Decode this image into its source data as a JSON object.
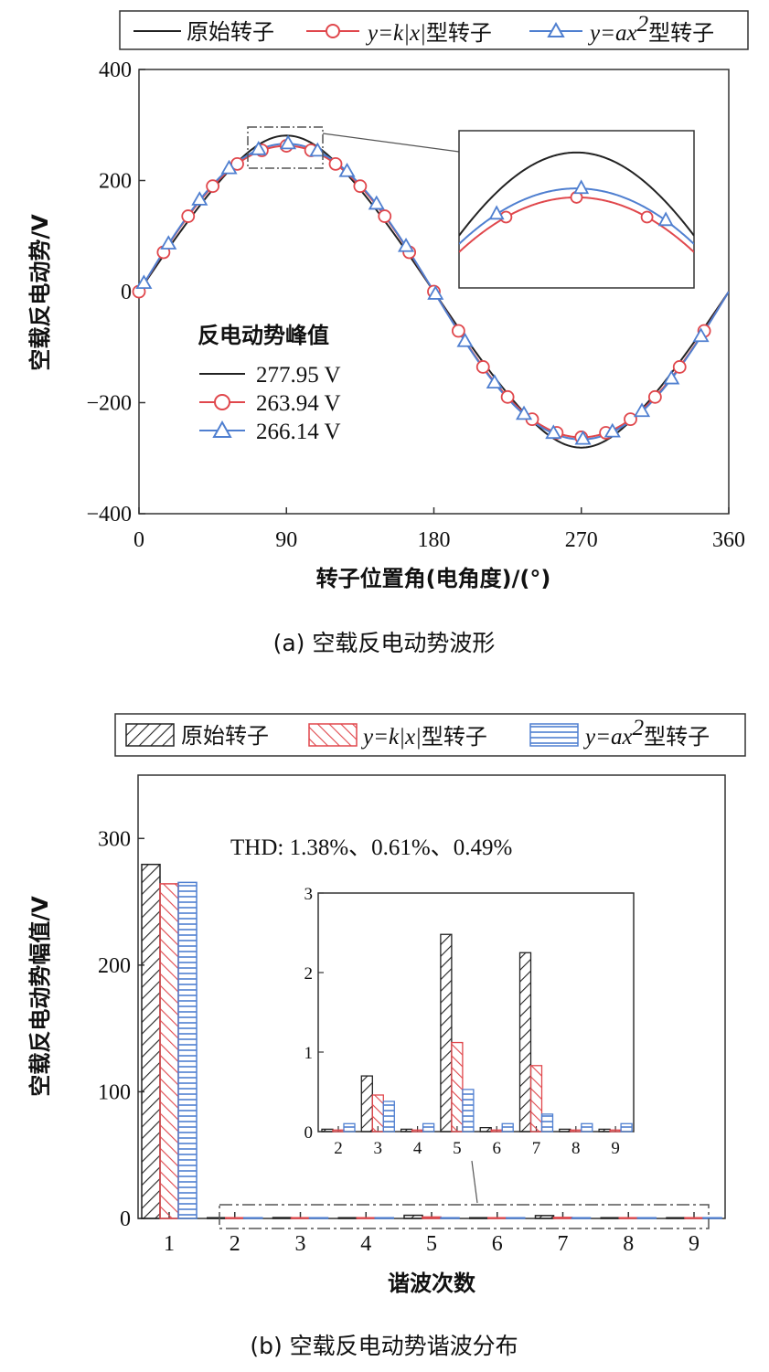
{
  "figure_a": {
    "legend": {
      "original": "原始转子",
      "k_prefix": "y",
      "k_mid": "=k|x|",
      "k_suffix": "型转子",
      "a_prefix": "y",
      "a_mid": "=ax",
      "a_sup": "2",
      "a_suffix": "型转子"
    },
    "peak_title": "反电动势峰值",
    "peaks": [
      "277.95 V",
      "263.94 V",
      "266.14 V"
    ],
    "caption": "(a) 空载反电动势波形"
  },
  "figure_b": {
    "legend": {
      "original": "原始转子",
      "k_prefix": "y",
      "k_mid": "=k|x|",
      "k_suffix": "型转子",
      "a_prefix": "y",
      "a_mid": "=ax",
      "a_sup": "2",
      "a_suffix": "型转子"
    },
    "thd": "THD: 1.38%、0.61%、0.49%",
    "caption": "(b) 空载反电动势谐波分布"
  },
  "colors": {
    "original": "#222222",
    "k_type": "#e0474c",
    "a_type": "#4f7fd0",
    "a_fill": "#c9dcf5",
    "axis": "#333333",
    "guide": "#555555"
  },
  "chart_data": [
    {
      "type": "line",
      "title": "(a) 空载反电动势波形",
      "xlabel": "转子位置角(电角度)/(°)",
      "ylabel": "空载反电动势/V",
      "xlim": [
        0,
        360
      ],
      "ylim": [
        -400,
        400
      ],
      "xticks": [
        0,
        90,
        180,
        270,
        360
      ],
      "yticks": [
        -400,
        -200,
        0,
        200,
        400
      ],
      "series": [
        {
          "name": "原始转子",
          "peak": 277.95,
          "marker": "none"
        },
        {
          "name": "y=k|x|型转子",
          "peak": 263.94,
          "marker": "circle",
          "marker_x": [
            0,
            15,
            30,
            45,
            60,
            75,
            90,
            105,
            120,
            135,
            150,
            165,
            180,
            195,
            210,
            225,
            240,
            255,
            270,
            285,
            300,
            315,
            330,
            345
          ]
        },
        {
          "name": "y=ax²型转子",
          "peak": 266.14,
          "marker": "triangle",
          "marker_x": [
            3,
            18,
            37,
            55,
            73,
            91,
            109,
            127,
            145,
            163,
            181,
            199,
            217,
            235,
            253,
            271,
            289,
            307,
            325,
            343
          ]
        }
      ],
      "inset_zoom": {
        "xlim": [
          65,
          115
        ],
        "ylim": [
          225,
          290
        ]
      }
    },
    {
      "type": "bar",
      "title": "(b) 空载反电动势谐波分布",
      "xlabel": "谐波次数",
      "ylabel": "空载反电动势幅值/V",
      "categories": [
        "1",
        "2",
        "3",
        "4",
        "5",
        "6",
        "7",
        "8",
        "9"
      ],
      "ylim": [
        0,
        350
      ],
      "yticks": [
        0,
        100,
        200,
        300
      ],
      "series": [
        {
          "name": "原始转子",
          "values": [
            279.5,
            0.03,
            0.7,
            0.03,
            2.48,
            0.05,
            2.25,
            0.03,
            0.03
          ]
        },
        {
          "name": "y=k|x|型转子",
          "values": [
            264.2,
            0.02,
            0.46,
            0.02,
            1.12,
            0.02,
            0.83,
            0.02,
            0.02
          ]
        },
        {
          "name": "y=ax²型转子",
          "values": [
            265.3,
            0.1,
            0.38,
            0.1,
            0.53,
            0.1,
            0.22,
            0.1,
            0.1
          ]
        }
      ],
      "inset": {
        "categories": [
          "2",
          "3",
          "4",
          "5",
          "6",
          "7",
          "8",
          "9"
        ],
        "ylim": [
          0,
          3
        ],
        "yticks": [
          0,
          1,
          2,
          3
        ]
      }
    }
  ]
}
